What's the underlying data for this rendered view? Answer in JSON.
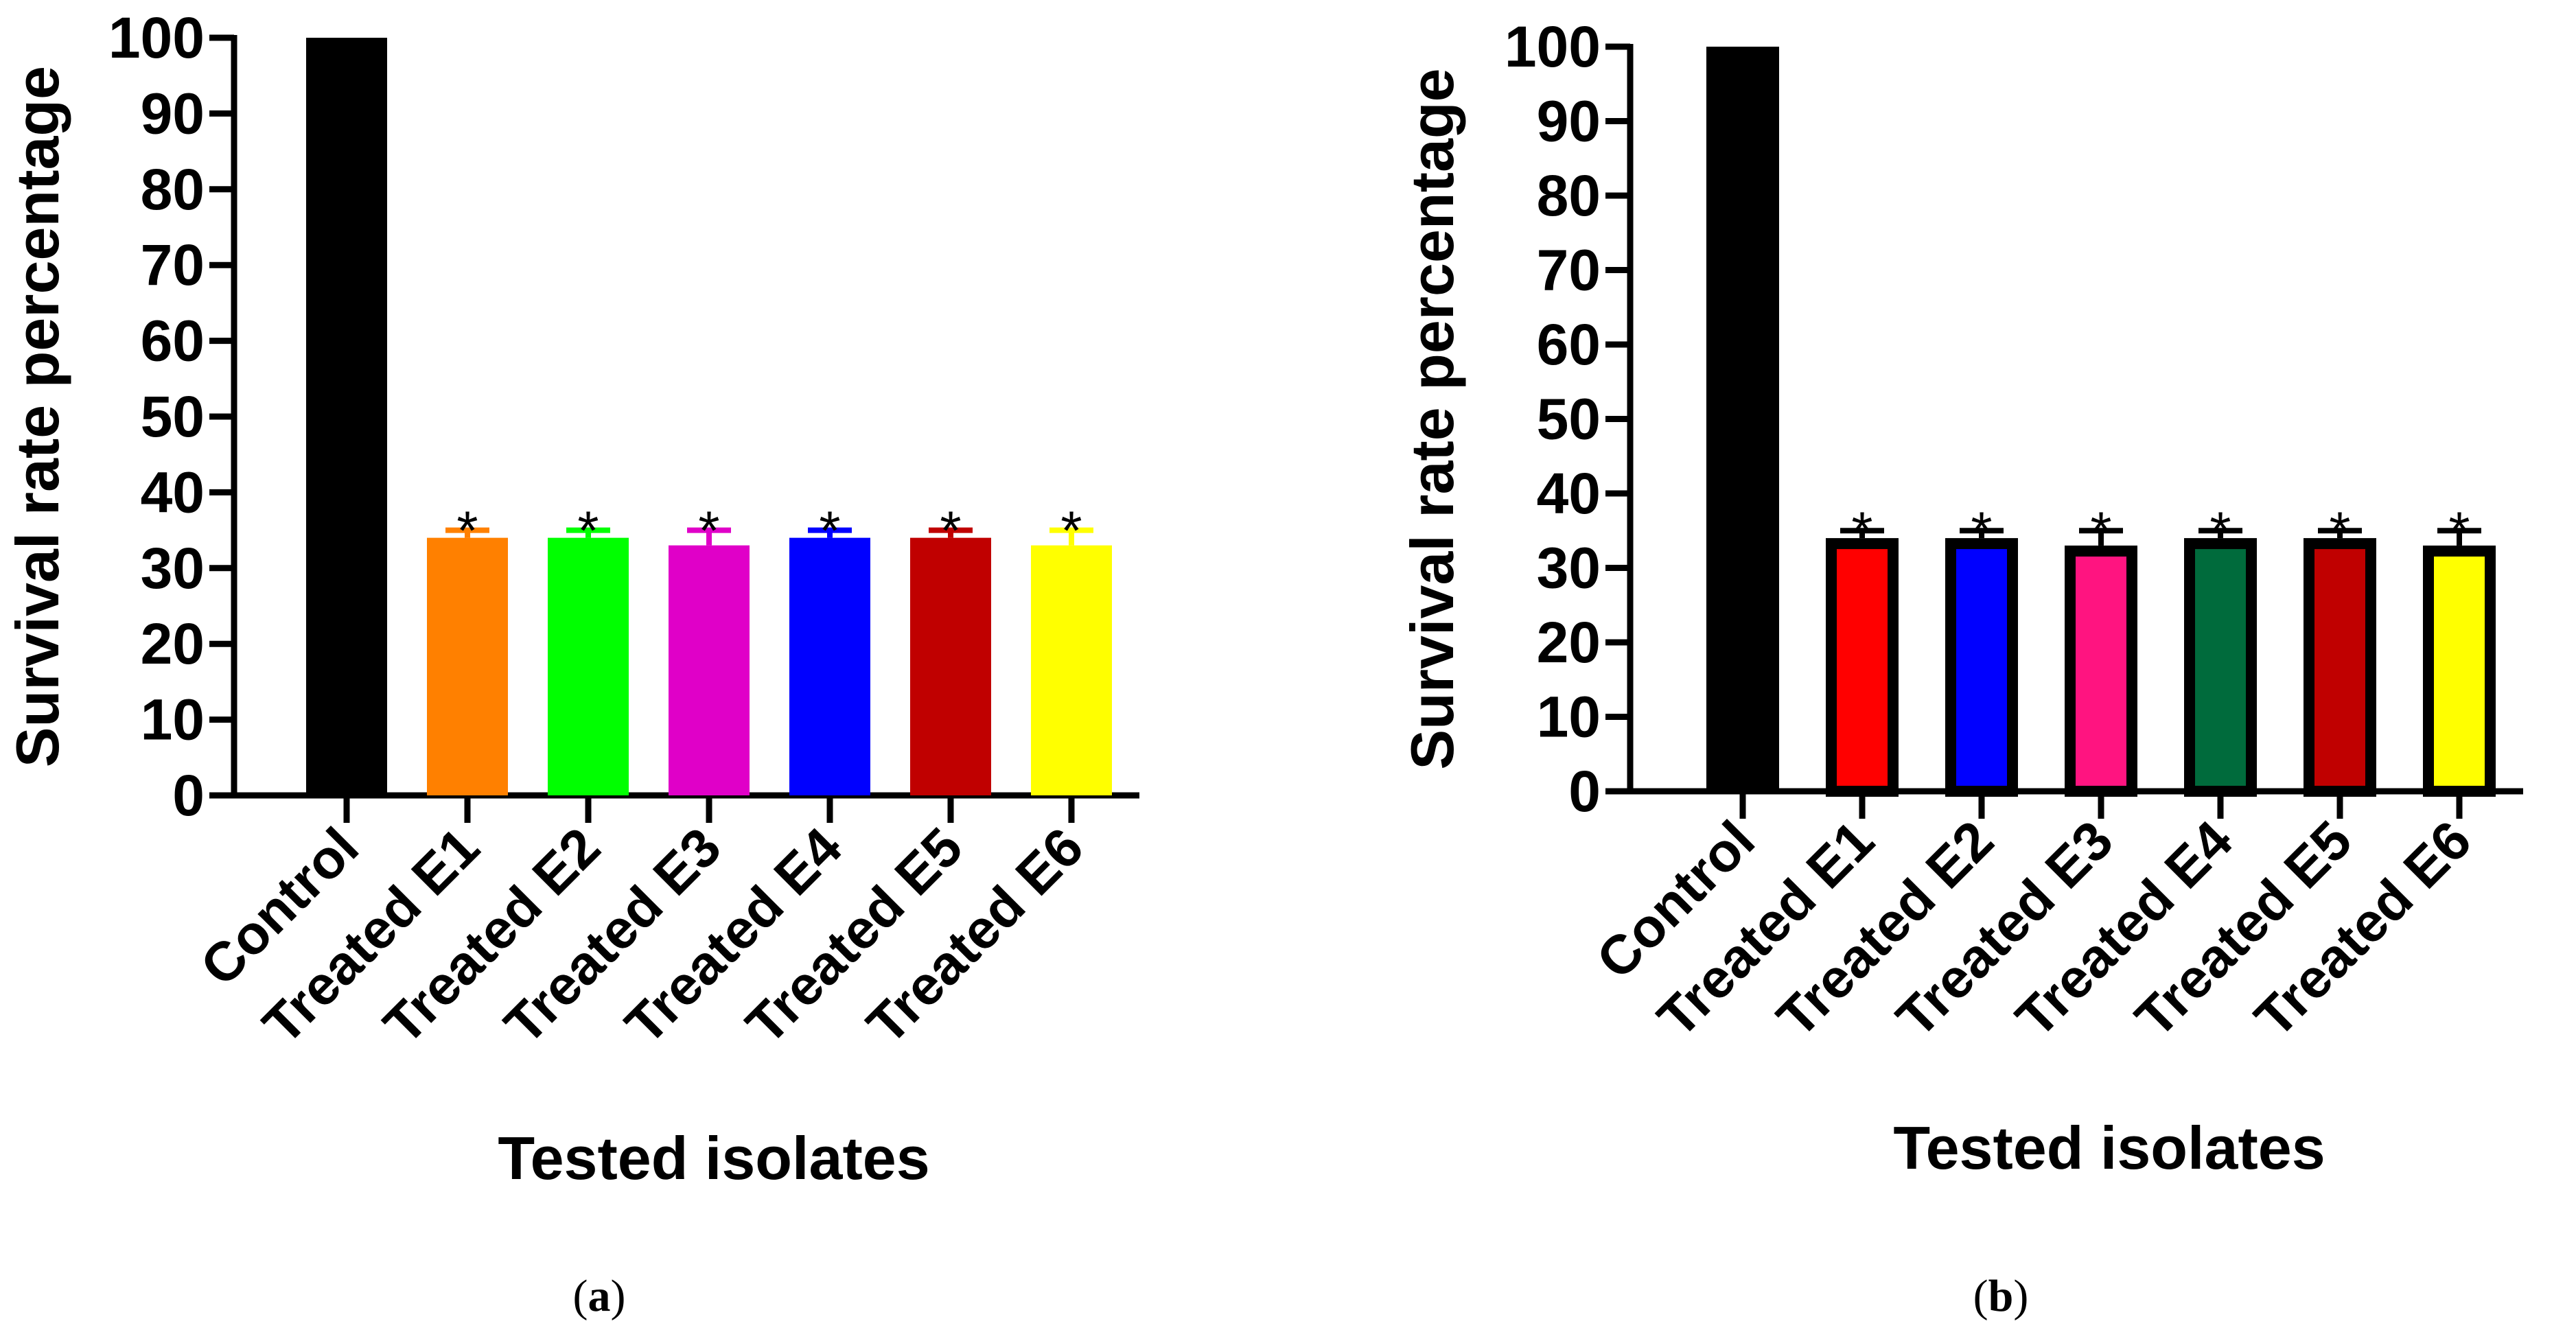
{
  "chart_data": [
    {
      "type": "bar",
      "panel": "(a)",
      "panel_text": "a",
      "ylabel": "Survival rate percentage",
      "xlabel": "Tested isolates",
      "ylim": [
        0,
        100
      ],
      "yticks": [
        0,
        10,
        20,
        30,
        40,
        50,
        60,
        70,
        80,
        90,
        100
      ],
      "categories": [
        "Control",
        "Treated E1",
        "Treated E2",
        "Treated E3",
        "Treated E4",
        "Treated E5",
        "Treated E6"
      ],
      "values": [
        100,
        34,
        34,
        33,
        34,
        34,
        33
      ],
      "errors": [
        0,
        1,
        1,
        2,
        1,
        1,
        2
      ],
      "significance": [
        "",
        "*",
        "*",
        "*",
        "*",
        "*",
        "*"
      ],
      "colors": [
        "#000000",
        "#ff8000",
        "#00ff00",
        "#e000c8",
        "#0000ff",
        "#c00000",
        "#ffff00"
      ],
      "bar_outline": false
    },
    {
      "type": "bar",
      "panel": "(b)",
      "panel_text": "b",
      "ylabel": "Survival rate percentage",
      "xlabel": "Tested isolates",
      "ylim": [
        0,
        100
      ],
      "yticks": [
        0,
        10,
        20,
        30,
        40,
        50,
        60,
        70,
        80,
        90,
        100
      ],
      "categories": [
        "Control",
        "Treated E1",
        "Treated E2",
        "Treated E3",
        "Treated E4",
        "Treated E5",
        "Treated E6"
      ],
      "values": [
        100,
        34,
        34,
        33,
        34,
        34,
        33
      ],
      "errors": [
        0,
        1,
        1,
        2,
        1,
        1,
        2
      ],
      "significance": [
        "",
        "*",
        "*",
        "*",
        "*",
        "*",
        "*"
      ],
      "colors": [
        "#000000",
        "#ff0000",
        "#0000ff",
        "#ff1480",
        "#006b3c",
        "#c00000",
        "#ffff00"
      ],
      "bar_outline": true
    }
  ]
}
